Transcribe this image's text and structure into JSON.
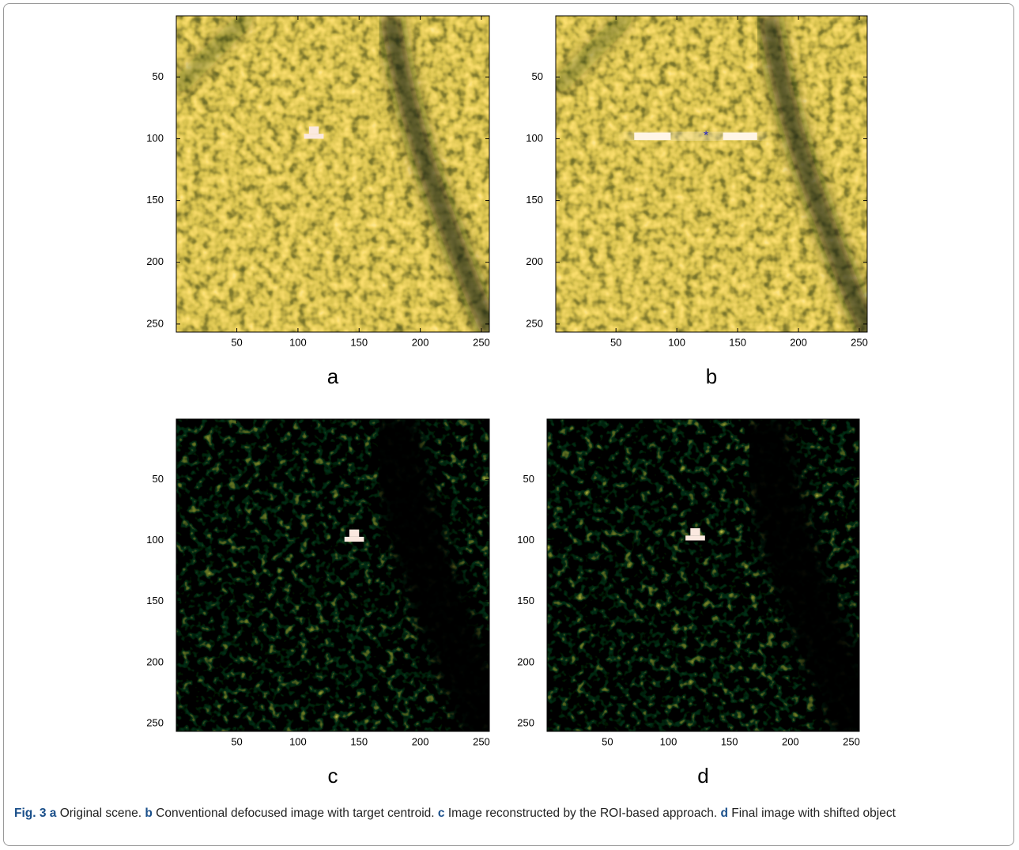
{
  "chart_data": [
    {
      "type": "image",
      "title": "a",
      "xlim": [
        0.5,
        256.5
      ],
      "ylim": [
        0.5,
        256.5
      ],
      "xticks": [
        50,
        100,
        150,
        200,
        250
      ],
      "yticks": [
        50,
        100,
        150,
        200,
        250
      ],
      "colormap": "gold"
    },
    {
      "type": "image",
      "title": "b",
      "xlim": [
        0.5,
        256.5
      ],
      "ylim": [
        0.5,
        256.5
      ],
      "xticks": [
        50,
        100,
        150,
        200,
        250
      ],
      "yticks": [
        50,
        100,
        150,
        200,
        250
      ],
      "colormap": "gold"
    },
    {
      "type": "image",
      "title": "c",
      "xlim": [
        0.5,
        256.5
      ],
      "ylim": [
        0.5,
        256.5
      ],
      "xticks": [
        50,
        100,
        150,
        200,
        250
      ],
      "yticks": [
        50,
        100,
        150,
        200,
        250
      ],
      "colormap": "dark"
    },
    {
      "type": "image",
      "title": "d",
      "xlim": [
        0.5,
        256.5
      ],
      "ylim": [
        0.5,
        256.5
      ],
      "xticks": [
        50,
        100,
        150,
        200,
        250
      ],
      "yticks": [
        50,
        100,
        150,
        200,
        250
      ],
      "colormap": "dark"
    }
  ],
  "caption": [
    {
      "text": "Fig. 3 a",
      "bold": true
    },
    {
      "text": " Original scene. ",
      "bold": false
    },
    {
      "text": "b",
      "bold": true
    },
    {
      "text": " Conventional defocused image with target centroid. ",
      "bold": false
    },
    {
      "text": "c",
      "bold": true
    },
    {
      "text": " Image reconstructed by the ROI-based approach. ",
      "bold": false
    },
    {
      "text": "d",
      "bold": true
    },
    {
      "text": " Final image with shifted object",
      "bold": false
    }
  ]
}
